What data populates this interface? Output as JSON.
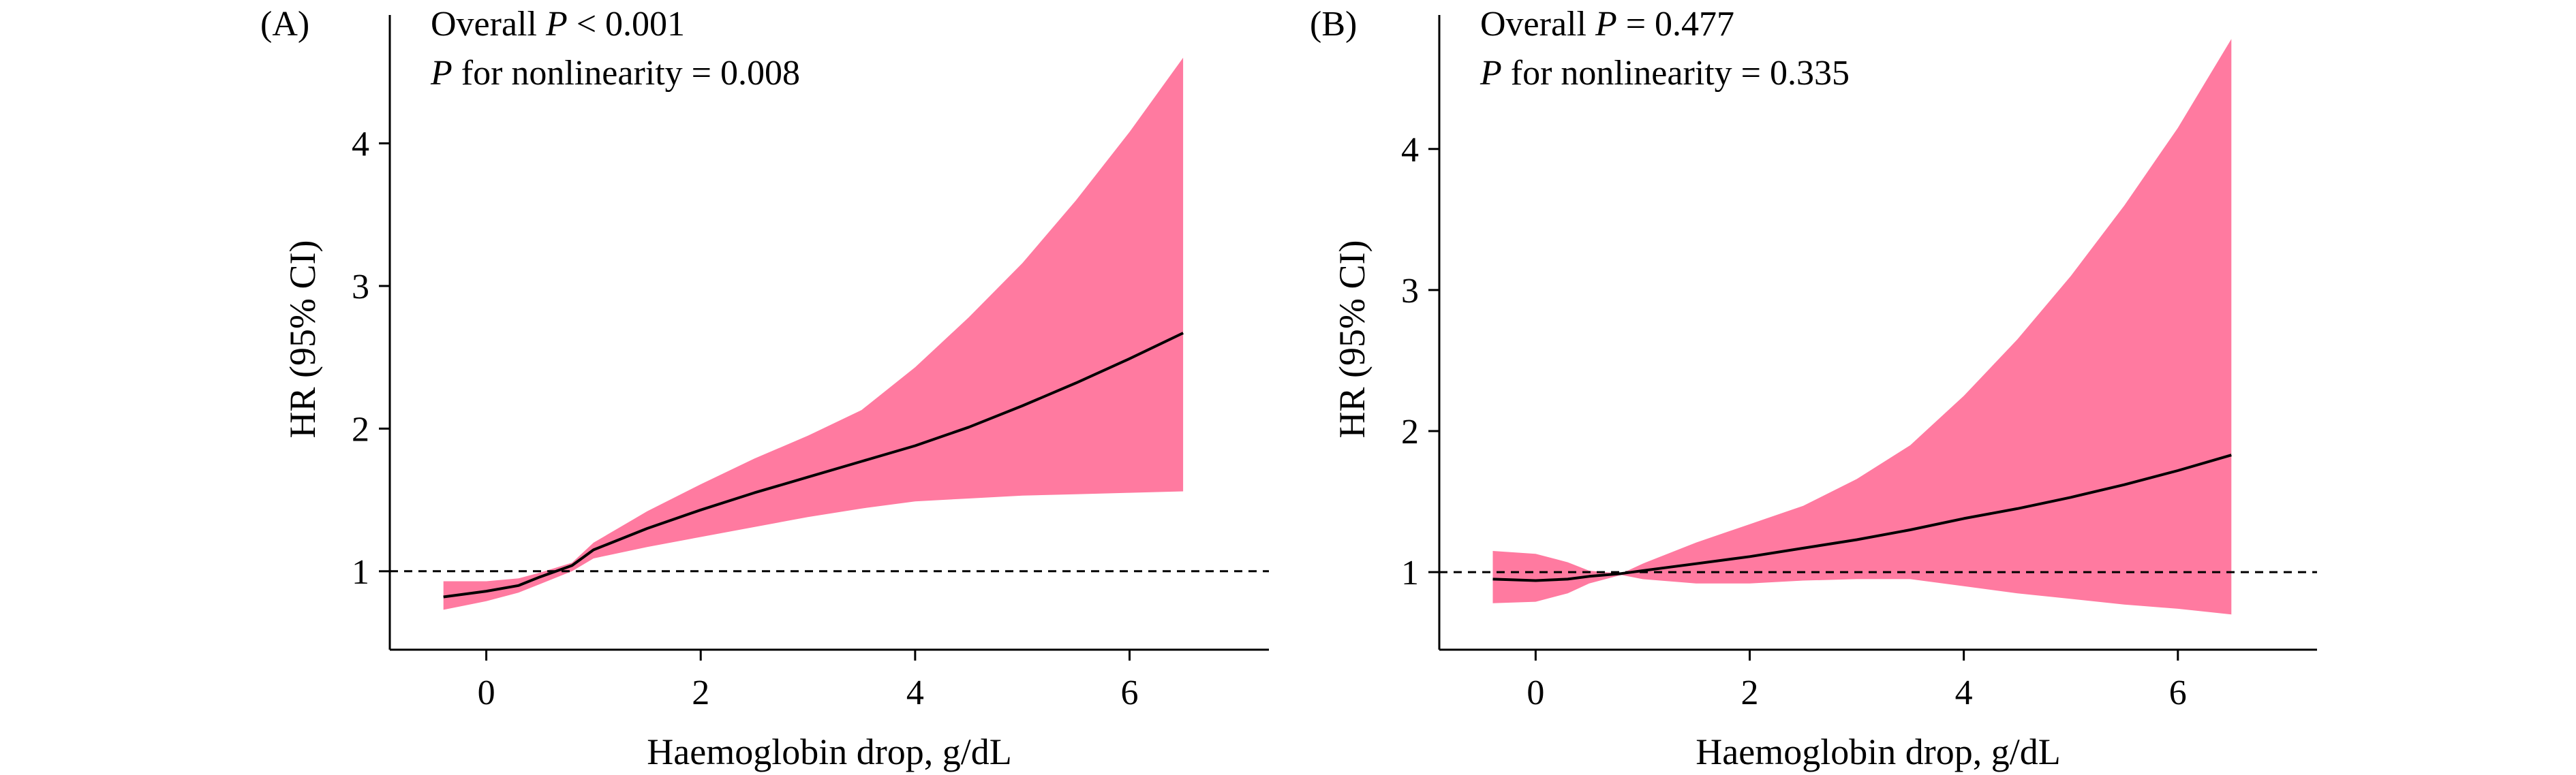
{
  "chart_data": [
    {
      "type": "line",
      "panel_label": "(A)",
      "annotation_line1": {
        "prefix": "Overall ",
        "p": "P",
        "suffix": " < 0.001"
      },
      "annotation_line2": {
        "p": "P",
        "suffix": " for nonlinearity = 0.008"
      },
      "xlabel": "Haemoglobin drop, g/dL",
      "ylabel": "HR (95% CI)",
      "xlim": [
        -0.9,
        7.3
      ],
      "ylim": [
        0.45,
        4.9
      ],
      "xticks": [
        0,
        2,
        4,
        6
      ],
      "xtick_labels": [
        "0",
        "2",
        "4",
        "6"
      ],
      "yticks": [
        1,
        2,
        3,
        4
      ],
      "ytick_labels": [
        "1",
        "2",
        "3",
        "4"
      ],
      "reference_line": 1,
      "colors": {
        "band": "#ff7aa0",
        "line": "#000000",
        "reference": "#000000"
      },
      "series": [
        {
          "x": [
            -0.4,
            0,
            0.3,
            0.5,
            0.8,
            1,
            1.5,
            2,
            2.5,
            3,
            3.5,
            4,
            4.5,
            5,
            5.5,
            6,
            6.5
          ],
          "y": [
            0.82,
            0.86,
            0.9,
            0.96,
            1.04,
            1.15,
            1.3,
            1.43,
            1.55,
            1.66,
            1.77,
            1.88,
            2.01,
            2.16,
            2.32,
            2.49,
            2.67
          ],
          "lower": [
            0.73,
            0.79,
            0.85,
            0.91,
            1.0,
            1.09,
            1.17,
            1.24,
            1.31,
            1.38,
            1.44,
            1.49,
            1.51,
            1.53,
            1.54,
            1.55,
            1.56
          ],
          "upper": [
            0.93,
            0.93,
            0.95,
            0.99,
            1.06,
            1.2,
            1.42,
            1.61,
            1.79,
            1.95,
            2.13,
            2.43,
            2.78,
            3.16,
            3.6,
            4.08,
            4.6
          ]
        }
      ]
    },
    {
      "type": "line",
      "panel_label": "(B)",
      "annotation_line1": {
        "prefix": "Overall ",
        "p": "P",
        "suffix": " = 0.477"
      },
      "annotation_line2": {
        "p": "P",
        "suffix": " for nonlinearity = 0.335"
      },
      "xlabel": "Haemoglobin drop, g/dL",
      "ylabel": "HR (95% CI)",
      "xlim": [
        -0.9,
        7.3
      ],
      "ylim": [
        0.45,
        4.95
      ],
      "xticks": [
        0,
        2,
        4,
        6
      ],
      "xtick_labels": [
        "0",
        "2",
        "4",
        "6"
      ],
      "yticks": [
        1,
        2,
        3,
        4
      ],
      "ytick_labels": [
        "1",
        "2",
        "3",
        "4"
      ],
      "reference_line": 1,
      "colors": {
        "band": "#ff7aa0",
        "line": "#000000",
        "reference": "#000000"
      },
      "series": [
        {
          "x": [
            -0.4,
            0,
            0.3,
            0.5,
            0.8,
            1,
            1.5,
            2,
            2.5,
            3,
            3.5,
            4,
            4.5,
            5,
            5.5,
            6,
            6.5
          ],
          "y": [
            0.95,
            0.94,
            0.95,
            0.97,
            0.99,
            1.01,
            1.06,
            1.11,
            1.17,
            1.23,
            1.3,
            1.38,
            1.45,
            1.53,
            1.62,
            1.72,
            1.83
          ],
          "lower": [
            0.78,
            0.79,
            0.85,
            0.92,
            0.98,
            0.95,
            0.92,
            0.92,
            0.94,
            0.95,
            0.95,
            0.9,
            0.85,
            0.81,
            0.77,
            0.74,
            0.7
          ],
          "upper": [
            1.15,
            1.13,
            1.07,
            1.01,
            0.99,
            1.06,
            1.21,
            1.34,
            1.47,
            1.66,
            1.9,
            2.25,
            2.65,
            3.1,
            3.6,
            4.15,
            4.78
          ]
        }
      ]
    }
  ]
}
